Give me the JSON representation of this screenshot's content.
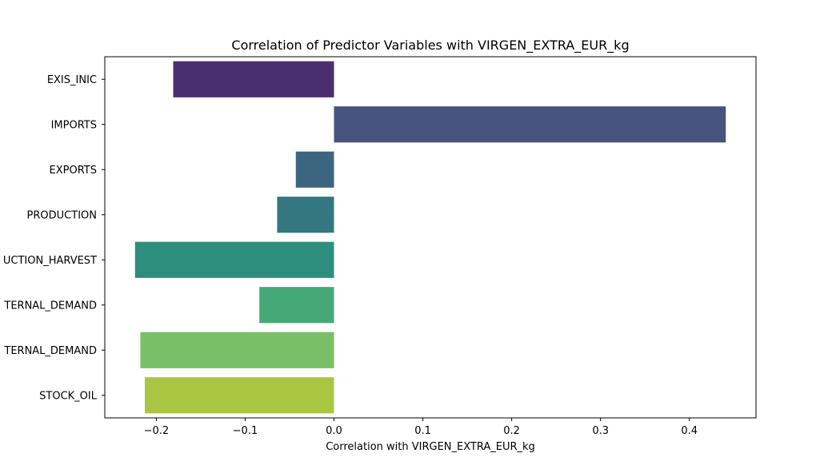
{
  "chart_data": {
    "type": "bar",
    "orientation": "horizontal",
    "title": "Correlation of Predictor Variables with VIRGEN_EXTRA_EUR_kg",
    "xlabel": "Correlation with VIRGEN_EXTRA_EUR_kg",
    "ylabel": "",
    "xlim": [
      -0.258,
      0.475
    ],
    "xticks": [
      -0.2,
      -0.1,
      0.0,
      0.1,
      0.2,
      0.3,
      0.4
    ],
    "xtick_labels": [
      "−0.2",
      "−0.1",
      "0.0",
      "0.1",
      "0.2",
      "0.3",
      "0.4"
    ],
    "categories": [
      "EXIS_INIC",
      "IMPORTS",
      "EXPORTS",
      "PRODUCTION",
      "UCTION_HARVEST",
      "TERNAL_DEMAND",
      "TERNAL_DEMAND",
      "STOCK_OIL"
    ],
    "values": [
      -0.181,
      0.441,
      -0.043,
      -0.064,
      -0.224,
      -0.084,
      -0.218,
      -0.213
    ],
    "colors": [
      "#4a2f6f",
      "#47527f",
      "#3c6580",
      "#347780",
      "#2e8e7d",
      "#45a877",
      "#79bf68",
      "#a9c642"
    ],
    "grid": false,
    "legend": "none"
  }
}
